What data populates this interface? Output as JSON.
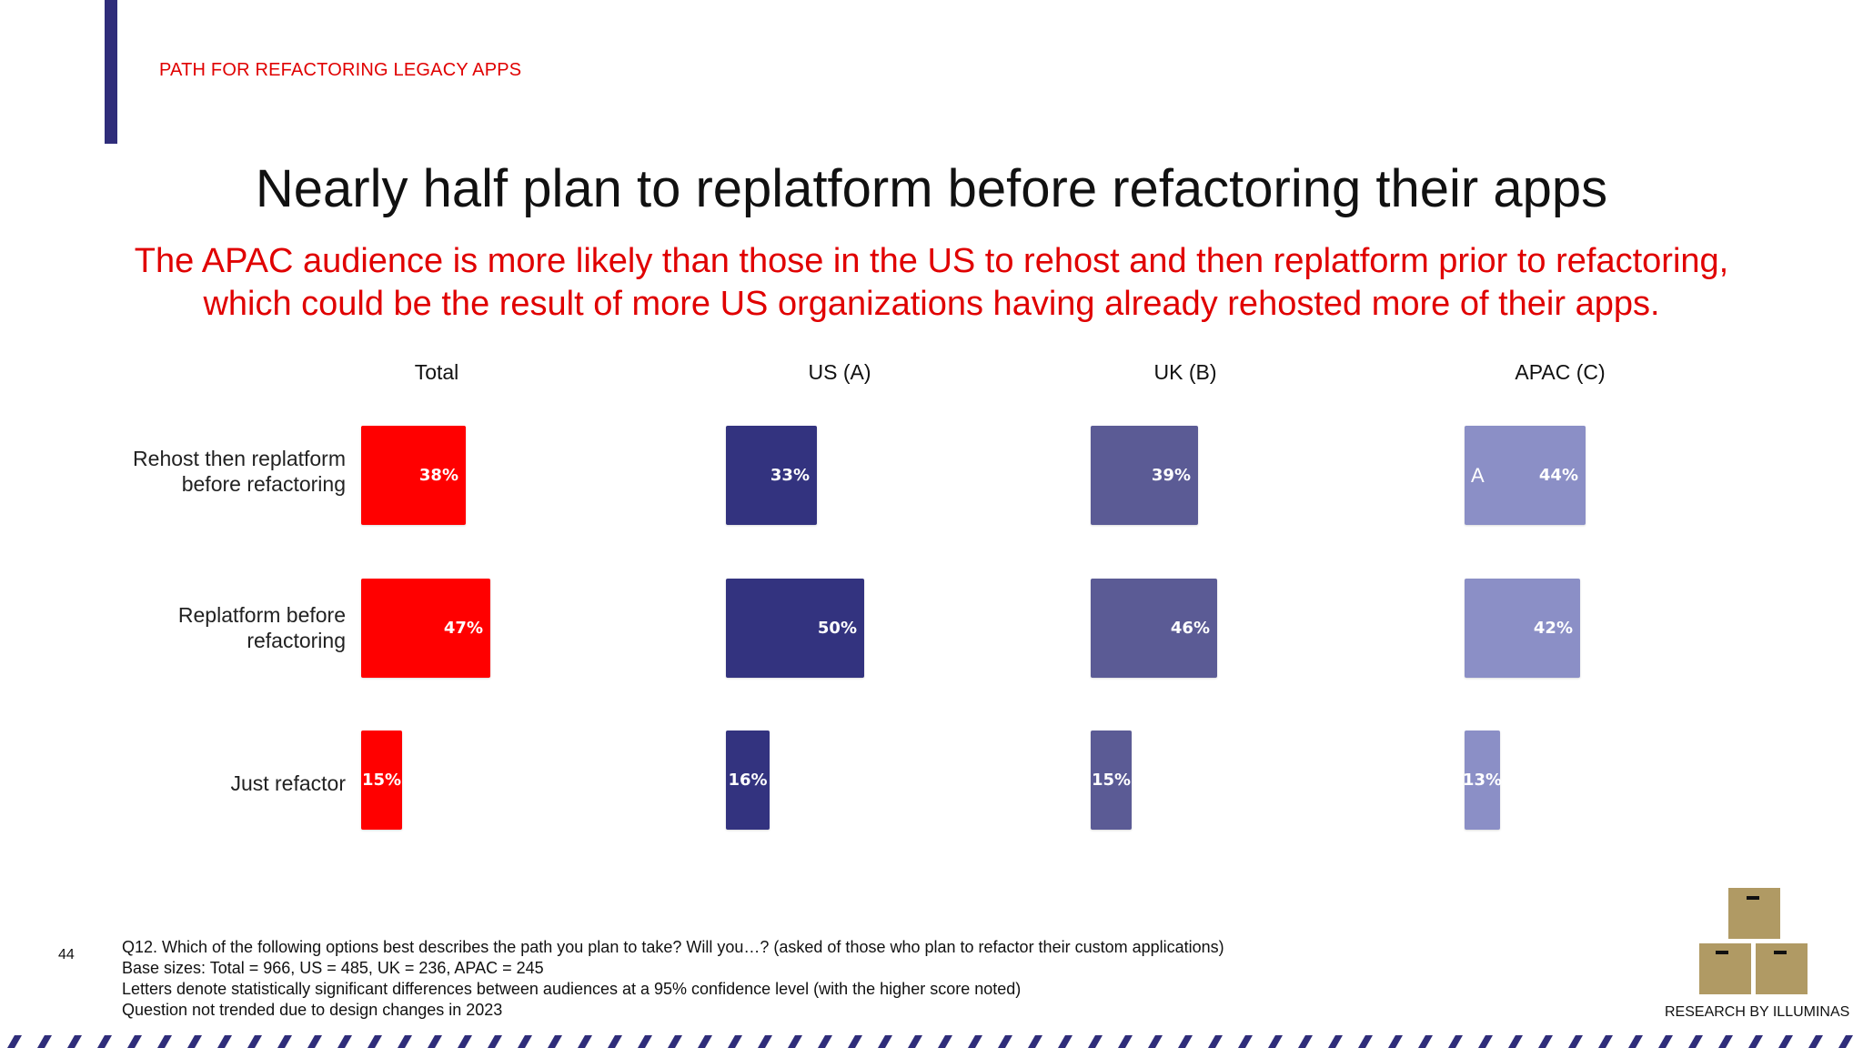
{
  "header": {
    "section_label": "PATH FOR REFACTORING LEGACY APPS",
    "title": "Nearly half plan to replatform before refactoring their apps",
    "subtitle_line1": "The APAC audience is more likely than those in the US to rehost and then replatform prior to refactoring,",
    "subtitle_line2": "which could be the result of more US organizations having already rehosted more of their apps."
  },
  "colors": {
    "accent_red": "#e00000",
    "navy": "#2f2d7a",
    "total": "#ff0000",
    "us": "#33337f",
    "uk": "#5b5b95",
    "apac": "#8b8fc6"
  },
  "chart_data": {
    "type": "bar",
    "orientation": "horizontal",
    "categories": [
      "Rehost then replatform before refactoring",
      "Replatform before refactoring",
      "Just refactor"
    ],
    "category_lines": [
      [
        "Rehost then replatform",
        "before refactoring"
      ],
      [
        "Replatform before",
        "refactoring"
      ],
      [
        "Just refactor"
      ]
    ],
    "unit": "%",
    "series": [
      {
        "name": "Total",
        "values": [
          38,
          47,
          15
        ],
        "labels": [
          "38%",
          "47%",
          "15%"
        ],
        "sig": [
          "",
          "",
          ""
        ]
      },
      {
        "name": "US (A)",
        "values": [
          33,
          50,
          16
        ],
        "labels": [
          "33%",
          "50%",
          "16%"
        ],
        "sig": [
          "",
          "",
          ""
        ]
      },
      {
        "name": "UK (B)",
        "values": [
          39,
          46,
          15
        ],
        "labels": [
          "39%",
          "46%",
          "15%"
        ],
        "sig": [
          "",
          "",
          ""
        ]
      },
      {
        "name": "APAC (C)",
        "values": [
          44,
          42,
          13
        ],
        "labels": [
          "44%",
          "42%",
          "13%"
        ],
        "sig": [
          "A",
          "",
          ""
        ]
      }
    ]
  },
  "footer": {
    "page_number": "44",
    "notes": [
      "Q12. Which of the following options best describes the path you plan to take? Will you…? (asked of those who plan to refactor their custom applications)",
      "Base sizes: Total = 966, US = 485, UK = 236, APAC = 245",
      "Letters denote statistically significant differences between audiences at a 95% confidence level (with the higher score noted)",
      "Question not trended due to design changes in 2023"
    ],
    "credit": "RESEARCH BY ILLUMINAS",
    "logo_icon": "stacked-boxes-icon"
  }
}
